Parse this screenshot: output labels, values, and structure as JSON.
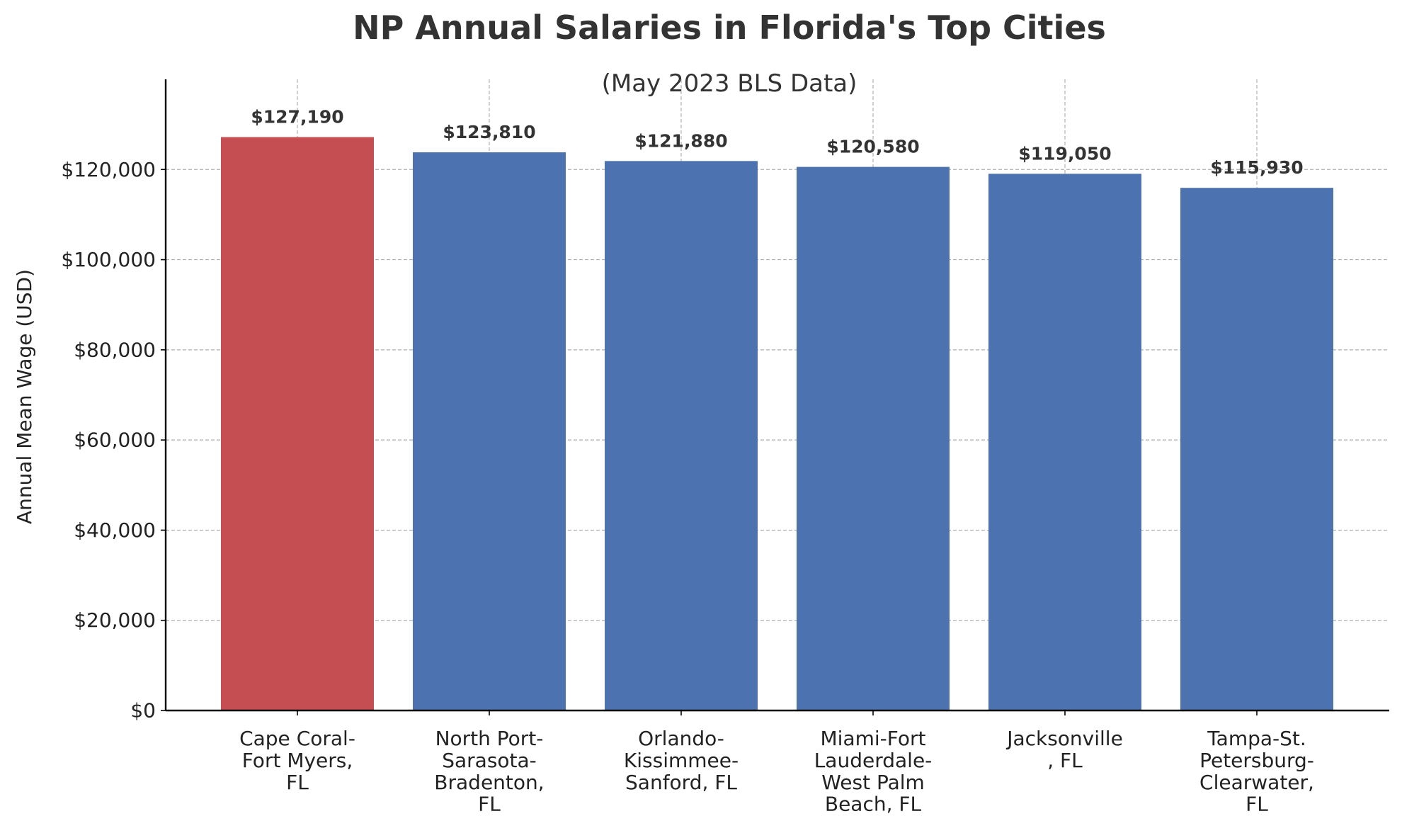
{
  "chart_data": {
    "type": "bar",
    "title": "NP Annual Salaries in Florida's Top Cities",
    "subtitle": "(May 2023 BLS Data)",
    "xlabel": "",
    "ylabel": "Annual Mean Wage (USD)",
    "ylim": [
      0,
      140000
    ],
    "yticks": [
      0,
      20000,
      40000,
      60000,
      80000,
      100000,
      120000
    ],
    "ytick_labels": [
      "$0",
      "$20,000",
      "$40,000",
      "$60,000",
      "$80,000",
      "$100,000",
      "$120,000"
    ],
    "grid": true,
    "categories": [
      [
        "Cape Coral-",
        "Fort Myers,",
        "FL"
      ],
      [
        "North Port-",
        "Sarasota-",
        "Bradenton,",
        "FL"
      ],
      [
        "Orlando-",
        "Kissimmee-",
        "Sanford, FL"
      ],
      [
        "Miami-Fort",
        "Lauderdale-",
        "West Palm",
        "Beach, FL"
      ],
      [
        "Jacksonville",
        ", FL"
      ],
      [
        "Tampa-St.",
        "Petersburg-",
        "Clearwater,",
        "FL"
      ]
    ],
    "values": [
      127190,
      123810,
      121880,
      120580,
      119050,
      115930
    ],
    "value_labels": [
      "$127,190",
      "$123,810",
      "$121,880",
      "$120,580",
      "$119,050",
      "$115,930"
    ],
    "bar_colors": [
      "#c44e52",
      "#4c72b0",
      "#4c72b0",
      "#4c72b0",
      "#4c72b0",
      "#4c72b0"
    ]
  },
  "colors": {
    "highlight": "#c44e52",
    "default": "#4c72b0",
    "text": "#333333",
    "grid": "#b0b0b0",
    "axis": "#000000"
  }
}
